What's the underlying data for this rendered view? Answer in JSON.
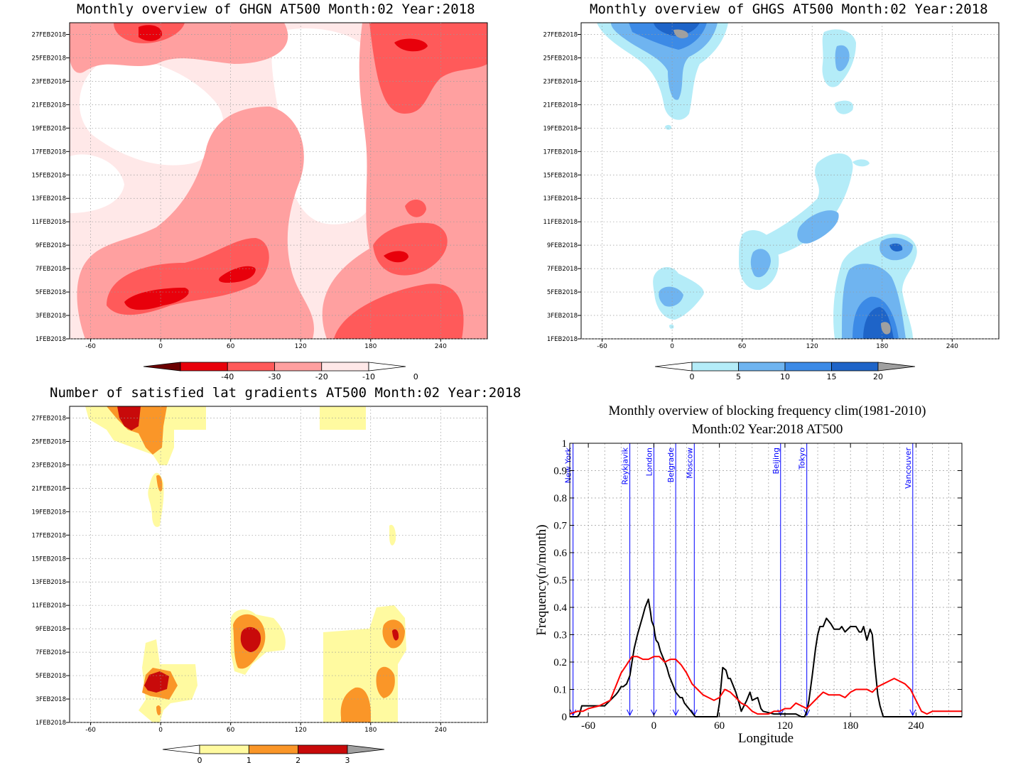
{
  "panels": {
    "ghgn": {
      "title": "Monthly overview of GHGN AT500 Month:02 Year:2018"
    },
    "ghgs": {
      "title": "Monthly overview of GHGS AT500 Month:02 Year:2018"
    },
    "lat": {
      "title": "Number of satisfied lat gradients AT500 Month:02 Year:2018"
    },
    "block": {
      "title_line1": "Monthly overview of blocking frequency clim(1981-2010)",
      "title_line2": "Month:02 Year:2018  AT500"
    }
  },
  "date_ticks": [
    "1FEB2018",
    "3FEB2018",
    "5FEB2018",
    "7FEB2018",
    "9FEB2018",
    "11FEB2018",
    "13FEB2018",
    "15FEB2018",
    "17FEB2018",
    "19FEB2018",
    "21FEB2018",
    "23FEB2018",
    "25FEB2018",
    "27FEB2018"
  ],
  "lon_ticks": [
    "-60",
    "0",
    "60",
    "120",
    "180",
    "240"
  ],
  "colorbars": {
    "ghgn": {
      "labels": [
        "-40",
        "-30",
        "-20",
        "-10",
        "0"
      ],
      "colors": [
        "#6b0000",
        "#e8000b",
        "#ff5a5a",
        "#ffa0a0",
        "#ffe8e8"
      ]
    },
    "ghgs": {
      "labels": [
        "0",
        "5",
        "10",
        "15",
        "20"
      ],
      "colors": [
        "#b4ecf8",
        "#6fb4f0",
        "#3c8ae6",
        "#1e64c8",
        "#a0a0a0"
      ]
    },
    "lat": {
      "labels": [
        "0",
        "1",
        "2",
        "3"
      ],
      "colors": [
        "#fffaa0",
        "#fa9628",
        "#c80a0a",
        "#a0a0a0"
      ]
    }
  },
  "chart_data": [
    {
      "type": "heatmap",
      "title": "Monthly overview of GHGN AT500 Month:02 Year:2018",
      "x_range": [
        -78,
        280
      ],
      "y_range": [
        "1FEB2018",
        "28FEB2018"
      ],
      "levels": [
        -40,
        -30,
        -20,
        -10,
        0
      ],
      "note_regions": [
        {
          "lon": -10,
          "date": "4FEB2018",
          "value": -30
        },
        {
          "lon": 70,
          "date": "7FEB2018",
          "value": -30
        },
        {
          "lon": 200,
          "date": "9FEB2018",
          "value": -35
        },
        {
          "lon": -10,
          "date": "27FEB2018",
          "value": -30
        },
        {
          "lon": 205,
          "date": "26FEB2018",
          "value": -35
        }
      ]
    },
    {
      "type": "heatmap",
      "title": "Monthly overview of GHGS AT500 Month:02 Year:2018",
      "x_range": [
        -78,
        280
      ],
      "y_range": [
        "1FEB2018",
        "28FEB2018"
      ],
      "levels": [
        0,
        5,
        10,
        15,
        20
      ],
      "note_regions": [
        {
          "lon": 180,
          "date": "2FEB2018",
          "value": 20
        },
        {
          "lon": 190,
          "date": "9FEB2018",
          "value": 15
        },
        {
          "lon": 5,
          "date": "27FEB2018",
          "value": 20
        },
        {
          "lon": -5,
          "date": "5FEB2018",
          "value": 10
        }
      ]
    },
    {
      "type": "heatmap",
      "title": "Number of satisfied lat gradients AT500 Month:02 Year:2018",
      "x_range": [
        -78,
        280
      ],
      "y_range": [
        "1FEB2018",
        "28FEB2018"
      ],
      "levels": [
        0,
        1,
        2,
        3
      ],
      "note_regions": [
        {
          "lon": -5,
          "date": "5FEB2018",
          "value": 3
        },
        {
          "lon": 75,
          "date": "8FEB2018",
          "value": 3
        },
        {
          "lon": 200,
          "date": "8FEB2018",
          "value": 3
        },
        {
          "lon": -25,
          "date": "28FEB2018",
          "value": 3
        }
      ]
    },
    {
      "type": "line",
      "title": "Monthly overview of blocking frequency clim(1981-2010)",
      "subtitle": "Month:02 Year:2018  AT500",
      "xlabel": "Longitude",
      "ylabel": "Frequency(n/month)",
      "xlim": [
        -77,
        282
      ],
      "ylim": [
        0,
        1
      ],
      "x_ticks": [
        "-60",
        "0",
        "60",
        "120",
        "180",
        "240"
      ],
      "y_ticks": [
        "0",
        "0.1",
        "0.2",
        "0.3",
        "0.4",
        "0.5",
        "0.6",
        "0.7",
        "0.8",
        "0.9",
        "1"
      ],
      "cities": [
        {
          "name": "New York",
          "lon": -74
        },
        {
          "name": "Reykjavik",
          "lon": -22
        },
        {
          "name": "London",
          "lon": 0
        },
        {
          "name": "Belgrade",
          "lon": 20
        },
        {
          "name": "Moscow",
          "lon": 37
        },
        {
          "name": "Beijing",
          "lon": 116
        },
        {
          "name": "Tokyo",
          "lon": 140
        },
        {
          "name": "Vancouver",
          "lon": 237
        }
      ],
      "series": [
        {
          "color": "#000000",
          "x": [
            -77,
            -70,
            -68,
            -66,
            -60,
            -45,
            -40,
            -35,
            -33,
            -30,
            -28,
            -25,
            -22,
            -20,
            -18,
            -15,
            -10,
            -8,
            -5,
            -3,
            -2,
            0,
            1,
            2,
            4,
            6,
            8,
            10,
            12,
            14,
            16,
            18,
            20,
            22,
            24,
            26,
            28,
            30,
            32,
            34,
            36,
            38,
            40,
            50,
            55,
            58,
            60,
            63,
            66,
            68,
            70,
            72,
            75,
            78,
            80,
            85,
            88,
            90,
            95,
            98,
            100,
            110,
            120,
            130,
            135,
            138,
            140,
            142,
            145,
            148,
            150,
            152,
            155,
            158,
            160,
            162,
            165,
            170,
            172,
            175,
            180,
            185,
            188,
            190,
            192,
            195,
            198,
            200,
            202,
            205,
            207,
            210,
            215,
            282
          ],
          "y": [
            0,
            0,
            0.01,
            0.04,
            0.04,
            0.04,
            0.06,
            0.08,
            0.09,
            0.11,
            0.11,
            0.12,
            0.15,
            0.2,
            0.25,
            0.3,
            0.37,
            0.4,
            0.43,
            0.38,
            0.35,
            0.33,
            0.3,
            0.28,
            0.27,
            0.24,
            0.22,
            0.2,
            0.18,
            0.15,
            0.13,
            0.11,
            0.09,
            0.08,
            0.07,
            0.07,
            0.05,
            0.04,
            0.03,
            0.02,
            0.01,
            0,
            0,
            0,
            0,
            0,
            0.05,
            0.18,
            0.17,
            0.14,
            0.14,
            0.12,
            0.09,
            0.05,
            0.02,
            0.06,
            0.09,
            0.06,
            0.07,
            0.03,
            0.02,
            0.01,
            0.01,
            0.01,
            0,
            0,
            0.02,
            0.06,
            0.15,
            0.25,
            0.3,
            0.33,
            0.33,
            0.36,
            0.35,
            0.34,
            0.32,
            0.32,
            0.33,
            0.31,
            0.33,
            0.33,
            0.31,
            0.31,
            0.33,
            0.28,
            0.32,
            0.3,
            0.2,
            0.08,
            0.04,
            0,
            0,
            0
          ]
        },
        {
          "color": "#ff0000",
          "x": [
            -77,
            -70,
            -65,
            -60,
            -50,
            -40,
            -35,
            -30,
            -25,
            -20,
            -15,
            -10,
            -5,
            0,
            5,
            10,
            15,
            20,
            25,
            30,
            35,
            40,
            45,
            50,
            55,
            60,
            65,
            70,
            75,
            80,
            85,
            90,
            95,
            100,
            105,
            110,
            115,
            120,
            125,
            130,
            135,
            140,
            145,
            150,
            155,
            160,
            165,
            170,
            175,
            180,
            185,
            190,
            195,
            200,
            205,
            210,
            215,
            220,
            225,
            230,
            235,
            240,
            245,
            250,
            255,
            260,
            270,
            282
          ],
          "y": [
            0.01,
            0.02,
            0.02,
            0.03,
            0.04,
            0.06,
            0.11,
            0.16,
            0.19,
            0.22,
            0.22,
            0.21,
            0.21,
            0.22,
            0.22,
            0.2,
            0.21,
            0.21,
            0.19,
            0.16,
            0.12,
            0.1,
            0.08,
            0.07,
            0.06,
            0.07,
            0.1,
            0.09,
            0.07,
            0.05,
            0.04,
            0.02,
            0.01,
            0.01,
            0.01,
            0.02,
            0.02,
            0.03,
            0.03,
            0.05,
            0.04,
            0.03,
            0.05,
            0.07,
            0.09,
            0.08,
            0.08,
            0.08,
            0.07,
            0.09,
            0.1,
            0.1,
            0.1,
            0.09,
            0.11,
            0.12,
            0.13,
            0.14,
            0.13,
            0.12,
            0.1,
            0.06,
            0.02,
            0.01,
            0.02,
            0.02,
            0.02,
            0.02
          ]
        }
      ]
    }
  ]
}
